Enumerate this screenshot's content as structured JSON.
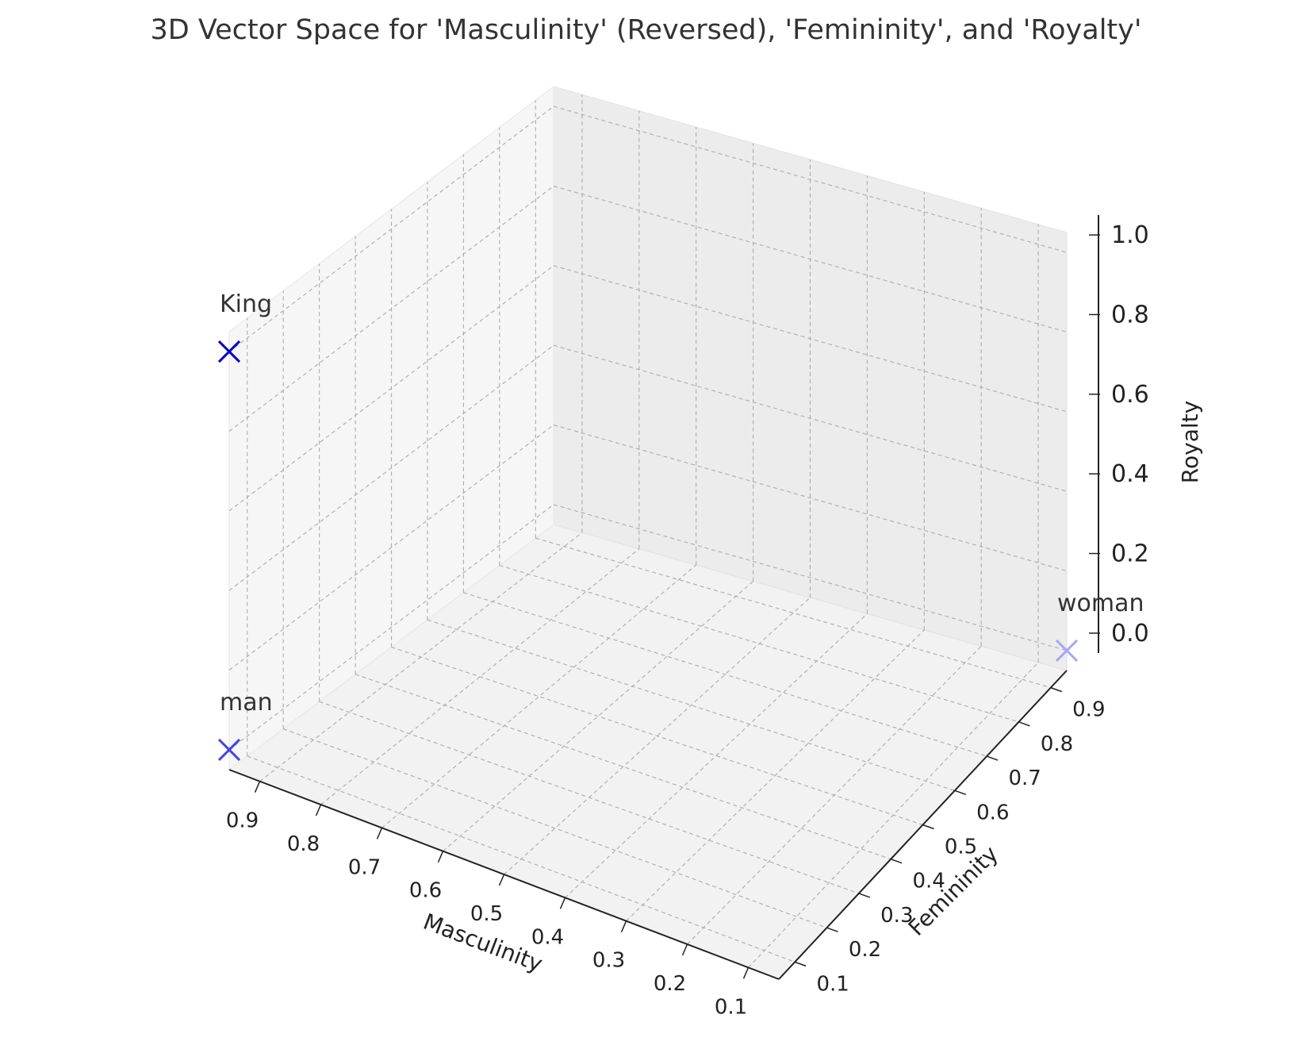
{
  "chart_data": {
    "type": "scatter",
    "title": "3D Vector Space for 'Masculinity' (Reversed), 'Femininity', and 'Royalty'",
    "xlabel": "Masculinity",
    "ylabel": "Femininity",
    "zlabel": "Royalty",
    "x_reversed": true,
    "xlim": [
      0.95,
      0.05
    ],
    "ylim": [
      0.05,
      0.95
    ],
    "zlim": [
      -0.05,
      1.05
    ],
    "x_ticks": [
      0.9,
      0.8,
      0.7,
      0.6,
      0.5,
      0.4,
      0.3,
      0.2,
      0.1
    ],
    "y_ticks": [
      0.1,
      0.2,
      0.3,
      0.4,
      0.5,
      0.6,
      0.7,
      0.8,
      0.9
    ],
    "z_ticks": [
      0.0,
      0.2,
      0.4,
      0.6,
      0.8,
      1.0
    ],
    "grid": true,
    "marker": "x",
    "points": [
      {
        "label": "King",
        "x": 0.95,
        "y": 0.05,
        "z": 1.0,
        "color": "#0000cc"
      },
      {
        "label": "man",
        "x": 0.95,
        "y": 0.05,
        "z": 0.0,
        "color": "#4444dd"
      },
      {
        "label": "woman",
        "x": 0.05,
        "y": 0.95,
        "z": 0.0,
        "color": "#a8a8f0"
      }
    ]
  }
}
